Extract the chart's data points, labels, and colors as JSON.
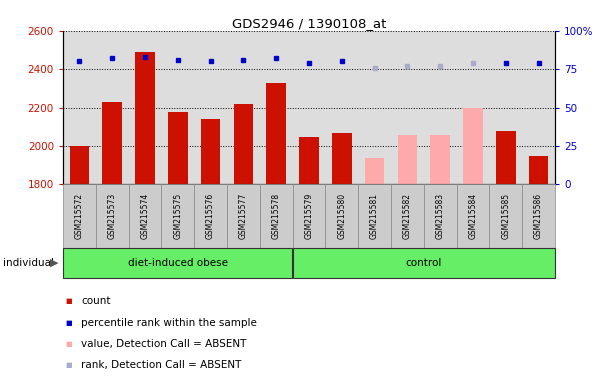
{
  "title": "GDS2946 / 1390108_at",
  "samples": [
    "GSM215572",
    "GSM215573",
    "GSM215574",
    "GSM215575",
    "GSM215576",
    "GSM215577",
    "GSM215578",
    "GSM215579",
    "GSM215580",
    "GSM215581",
    "GSM215582",
    "GSM215583",
    "GSM215584",
    "GSM215585",
    "GSM215586"
  ],
  "values": [
    1998,
    2228,
    2488,
    2178,
    2138,
    2218,
    2328,
    2048,
    2068,
    1938,
    2058,
    2058,
    2198,
    2078,
    1948
  ],
  "ranks": [
    80,
    82,
    83,
    81,
    80,
    81,
    82,
    79,
    80,
    76,
    77,
    77,
    79,
    79,
    79
  ],
  "absent": [
    false,
    false,
    false,
    false,
    false,
    false,
    false,
    false,
    false,
    true,
    true,
    true,
    true,
    false,
    false
  ],
  "groups": [
    "diet-induced obese",
    "diet-induced obese",
    "diet-induced obese",
    "diet-induced obese",
    "diet-induced obese",
    "diet-induced obese",
    "diet-induced obese",
    "control",
    "control",
    "control",
    "control",
    "control",
    "control",
    "control",
    "control"
  ],
  "ylim_left": [
    1800,
    2600
  ],
  "ylim_right": [
    0,
    100
  ],
  "bar_color_present": "#cc1100",
  "bar_color_absent": "#ffaaaa",
  "dot_color_present": "#0000cc",
  "dot_color_absent": "#aaaacc",
  "group_color": "#66ee66",
  "tick_bg_color": "#cccccc",
  "plot_bg_color": "#dddddd",
  "legend_items": [
    "count",
    "percentile rank within the sample",
    "value, Detection Call = ABSENT",
    "rank, Detection Call = ABSENT"
  ]
}
